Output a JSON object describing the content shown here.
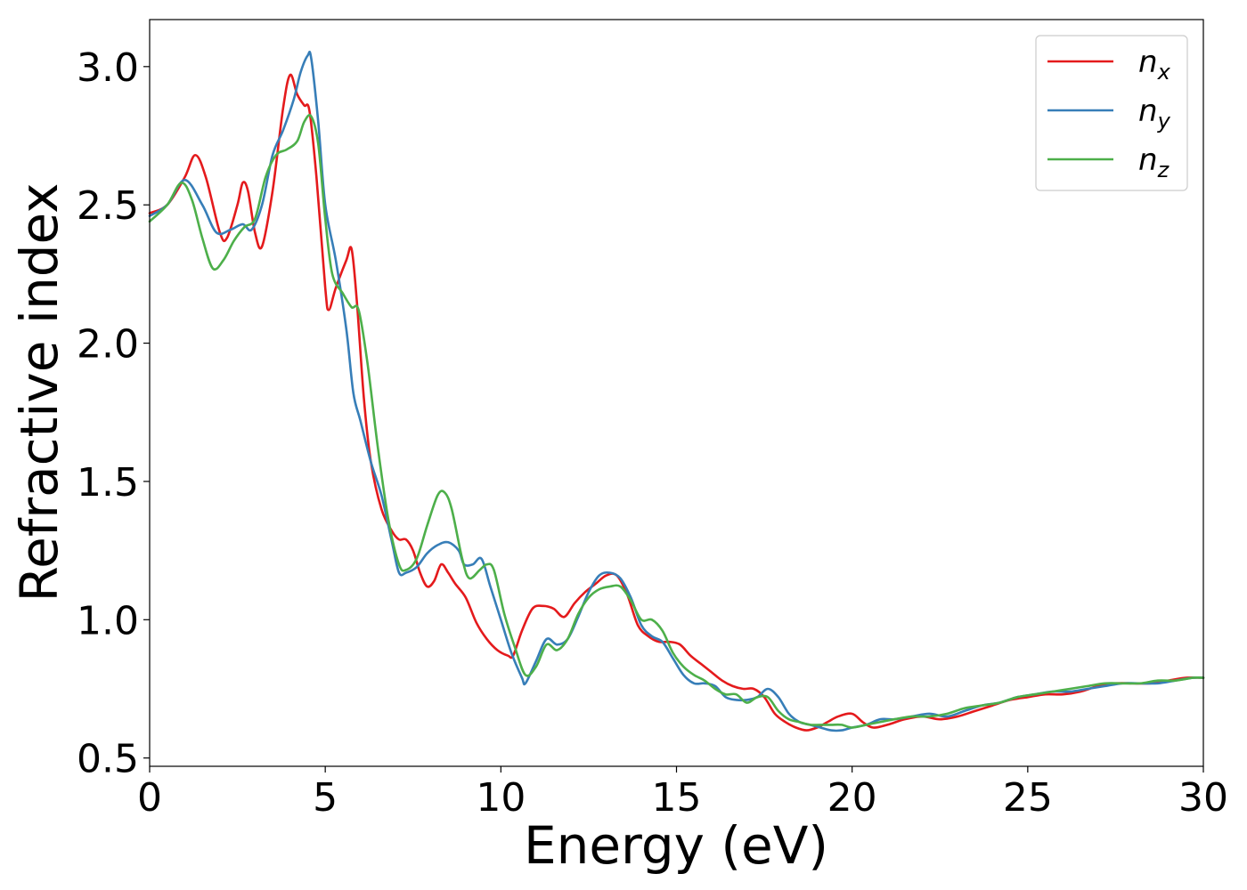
{
  "chart_data": {
    "type": "line",
    "xlabel": "Energy (eV)",
    "ylabel": "Refractive index",
    "xlim": [
      0,
      30
    ],
    "ylim": [
      0.47,
      3.17
    ],
    "xticks": [
      0,
      5,
      10,
      15,
      20,
      25,
      30
    ],
    "xtick_labels": [
      "0",
      "5",
      "10",
      "15",
      "20",
      "25",
      "30"
    ],
    "yticks": [
      0.5,
      1.0,
      1.5,
      2.0,
      2.5,
      3.0
    ],
    "ytick_labels": [
      "0.5",
      "1.0",
      "1.5",
      "2.0",
      "2.5",
      "3.0"
    ],
    "grid": false,
    "legend_position": "top-right",
    "series": [
      {
        "name": "n_x",
        "label_base": "n",
        "label_sub": "x",
        "color": "#e41a1c",
        "x": [
          0,
          0.5,
          1.0,
          1.3,
          1.6,
          2.0,
          2.2,
          2.5,
          2.65,
          2.8,
          3.0,
          3.2,
          3.5,
          3.8,
          4.0,
          4.2,
          4.4,
          4.55,
          4.75,
          5.0,
          5.1,
          5.3,
          5.6,
          5.75,
          5.9,
          6.1,
          6.3,
          6.6,
          6.9,
          7.1,
          7.3,
          7.5,
          7.7,
          7.9,
          8.1,
          8.3,
          8.5,
          8.7,
          9.0,
          9.3,
          9.6,
          9.9,
          10.2,
          10.35,
          10.6,
          10.9,
          11.2,
          11.5,
          11.8,
          12.1,
          12.4,
          12.7,
          13.0,
          13.3,
          13.6,
          13.9,
          14.2,
          14.5,
          14.8,
          15.1,
          15.4,
          15.7,
          16.0,
          16.3,
          16.6,
          16.9,
          17.2,
          17.5,
          17.8,
          18.1,
          18.4,
          18.7,
          19.0,
          19.3,
          19.6,
          20.0,
          20.3,
          20.6,
          21.0,
          21.5,
          22.0,
          22.5,
          23.0,
          23.5,
          24.0,
          24.5,
          25.0,
          25.5,
          26.0,
          26.5,
          27.0,
          27.5,
          28.0,
          28.5,
          29.0,
          29.5,
          30.0
        ],
        "y": [
          2.47,
          2.5,
          2.6,
          2.68,
          2.6,
          2.4,
          2.38,
          2.5,
          2.58,
          2.55,
          2.4,
          2.35,
          2.55,
          2.85,
          2.97,
          2.9,
          2.86,
          2.84,
          2.6,
          2.2,
          2.12,
          2.2,
          2.3,
          2.34,
          2.15,
          1.8,
          1.57,
          1.4,
          1.32,
          1.29,
          1.29,
          1.25,
          1.17,
          1.12,
          1.14,
          1.2,
          1.17,
          1.13,
          1.08,
          0.99,
          0.93,
          0.89,
          0.87,
          0.87,
          0.96,
          1.04,
          1.05,
          1.04,
          1.01,
          1.06,
          1.1,
          1.13,
          1.16,
          1.16,
          1.09,
          0.98,
          0.94,
          0.92,
          0.92,
          0.91,
          0.87,
          0.84,
          0.81,
          0.78,
          0.76,
          0.75,
          0.75,
          0.72,
          0.66,
          0.63,
          0.61,
          0.6,
          0.61,
          0.63,
          0.65,
          0.66,
          0.63,
          0.61,
          0.62,
          0.64,
          0.65,
          0.64,
          0.65,
          0.67,
          0.69,
          0.71,
          0.72,
          0.73,
          0.73,
          0.74,
          0.76,
          0.77,
          0.77,
          0.77,
          0.78,
          0.79,
          0.79
        ]
      },
      {
        "name": "n_y",
        "label_base": "n",
        "label_sub": "y",
        "color": "#377eb8",
        "x": [
          0,
          0.5,
          1.0,
          1.5,
          1.9,
          2.3,
          2.65,
          2.9,
          3.2,
          3.5,
          3.8,
          4.1,
          4.3,
          4.5,
          4.6,
          4.8,
          5.0,
          5.3,
          5.6,
          5.8,
          6.0,
          6.3,
          6.6,
          6.9,
          7.1,
          7.3,
          7.6,
          7.9,
          8.2,
          8.5,
          8.8,
          8.95,
          9.2,
          9.45,
          9.7,
          10.0,
          10.3,
          10.6,
          10.7,
          11.0,
          11.3,
          11.6,
          11.9,
          12.2,
          12.5,
          12.8,
          13.1,
          13.4,
          13.7,
          14.0,
          14.3,
          14.6,
          14.9,
          15.2,
          15.5,
          15.8,
          16.1,
          16.4,
          16.7,
          17.0,
          17.3,
          17.6,
          17.9,
          18.2,
          18.5,
          18.8,
          19.1,
          19.4,
          19.7,
          20.0,
          20.4,
          20.8,
          21.2,
          21.7,
          22.2,
          22.7,
          23.2,
          23.7,
          24.2,
          24.7,
          25.2,
          25.7,
          26.2,
          26.7,
          27.2,
          27.7,
          28.2,
          28.7,
          29.2,
          29.7,
          30.0
        ],
        "y": [
          2.46,
          2.5,
          2.59,
          2.5,
          2.4,
          2.41,
          2.43,
          2.41,
          2.5,
          2.68,
          2.77,
          2.88,
          2.98,
          3.04,
          3.03,
          2.8,
          2.5,
          2.3,
          2.05,
          1.82,
          1.72,
          1.57,
          1.45,
          1.28,
          1.17,
          1.17,
          1.19,
          1.24,
          1.27,
          1.28,
          1.25,
          1.2,
          1.2,
          1.22,
          1.12,
          1.0,
          0.88,
          0.79,
          0.77,
          0.85,
          0.93,
          0.91,
          0.93,
          1.01,
          1.1,
          1.16,
          1.17,
          1.15,
          1.08,
          0.98,
          0.94,
          0.92,
          0.86,
          0.8,
          0.77,
          0.77,
          0.76,
          0.72,
          0.71,
          0.71,
          0.72,
          0.75,
          0.72,
          0.66,
          0.63,
          0.62,
          0.61,
          0.6,
          0.6,
          0.61,
          0.62,
          0.64,
          0.64,
          0.65,
          0.66,
          0.65,
          0.67,
          0.69,
          0.7,
          0.72,
          0.73,
          0.74,
          0.74,
          0.75,
          0.76,
          0.77,
          0.77,
          0.77,
          0.78,
          0.79,
          0.79
        ]
      },
      {
        "name": "n_z",
        "label_base": "n",
        "label_sub": "z",
        "color": "#4daf4a",
        "x": [
          0,
          0.5,
          0.9,
          1.2,
          1.5,
          1.8,
          2.1,
          2.4,
          2.7,
          3.0,
          3.3,
          3.6,
          3.9,
          4.2,
          4.4,
          4.6,
          4.8,
          5.0,
          5.2,
          5.5,
          5.75,
          5.95,
          6.2,
          6.5,
          6.8,
          7.1,
          7.3,
          7.6,
          7.9,
          8.2,
          8.4,
          8.6,
          8.9,
          9.1,
          9.4,
          9.6,
          9.8,
          10.1,
          10.4,
          10.7,
          11.0,
          11.3,
          11.6,
          11.9,
          12.2,
          12.5,
          12.8,
          13.1,
          13.4,
          13.7,
          14.0,
          14.3,
          14.6,
          14.9,
          15.2,
          15.5,
          15.8,
          16.1,
          16.4,
          16.7,
          17.0,
          17.3,
          17.6,
          17.9,
          18.2,
          18.5,
          18.8,
          19.1,
          19.4,
          19.7,
          20.0,
          20.4,
          20.8,
          21.2,
          21.7,
          22.2,
          22.7,
          23.2,
          23.7,
          24.2,
          24.7,
          25.2,
          25.7,
          26.2,
          26.7,
          27.2,
          27.7,
          28.2,
          28.7,
          29.2,
          29.7,
          30.0
        ],
        "y": [
          2.44,
          2.5,
          2.58,
          2.52,
          2.38,
          2.27,
          2.3,
          2.37,
          2.42,
          2.45,
          2.6,
          2.68,
          2.7,
          2.73,
          2.8,
          2.82,
          2.72,
          2.45,
          2.25,
          2.18,
          2.13,
          2.12,
          1.93,
          1.62,
          1.36,
          1.2,
          1.18,
          1.22,
          1.34,
          1.45,
          1.46,
          1.4,
          1.22,
          1.15,
          1.18,
          1.2,
          1.18,
          1.02,
          0.9,
          0.8,
          0.83,
          0.91,
          0.89,
          0.93,
          1.02,
          1.08,
          1.11,
          1.12,
          1.12,
          1.07,
          1.0,
          1.0,
          0.96,
          0.88,
          0.83,
          0.8,
          0.78,
          0.75,
          0.73,
          0.73,
          0.7,
          0.72,
          0.72,
          0.67,
          0.64,
          0.63,
          0.62,
          0.62,
          0.62,
          0.62,
          0.61,
          0.62,
          0.63,
          0.64,
          0.65,
          0.65,
          0.66,
          0.68,
          0.69,
          0.7,
          0.72,
          0.73,
          0.74,
          0.75,
          0.76,
          0.77,
          0.77,
          0.77,
          0.78,
          0.78,
          0.79,
          0.79
        ]
      }
    ]
  }
}
